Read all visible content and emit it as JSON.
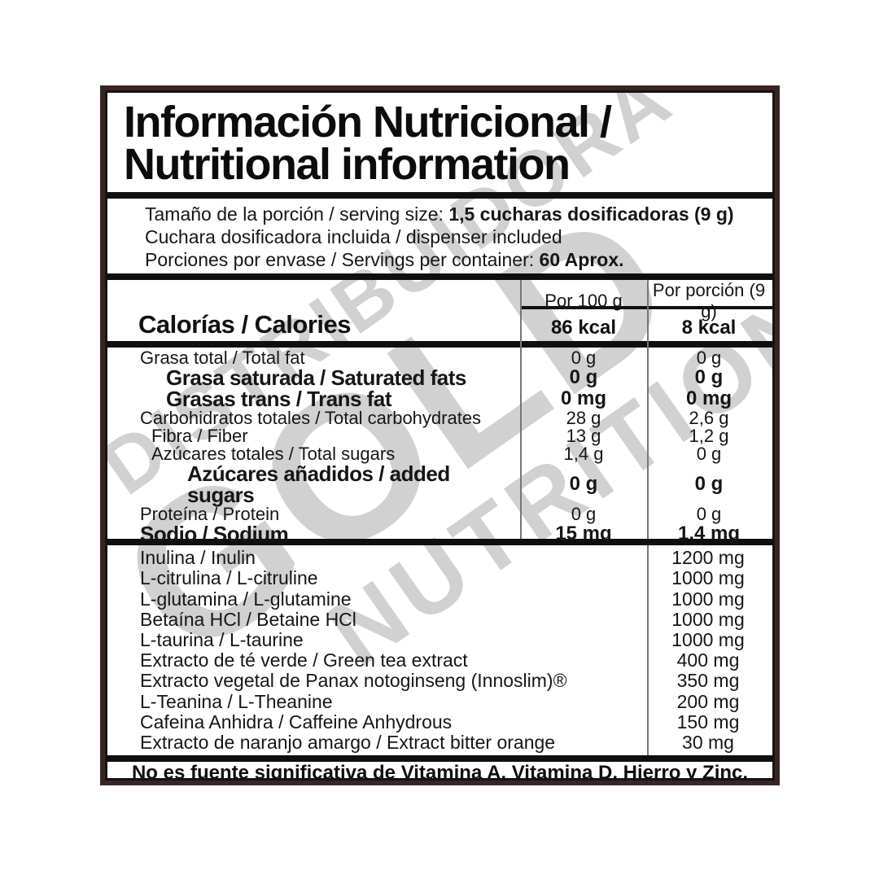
{
  "colors": {
    "outer_border": "#382521",
    "rule_black": "#0f0f0f",
    "column_divider_gray": "#777777",
    "watermark_gray": "#c9c9c9"
  },
  "watermark": {
    "lines": [
      "DISTRIBUIDORA",
      "GOLD",
      "NUTRITION"
    ]
  },
  "label": {
    "title": {
      "line1": "Información Nutricional /",
      "line2": "Nutritional information"
    },
    "serving": {
      "line1_regular": "Tamaño de la porción / serving size: ",
      "line1_bold": "1,5 cucharas dosificadoras (9 g)",
      "line2": "Cuchara dosificadora incluida / dispenser included",
      "line3_regular": "Porciones por envase / Servings per container: ",
      "line3_bold": "60 Aprox."
    },
    "table": {
      "col_headers": [
        "Por 100 g",
        "Por porción (9 g)"
      ],
      "calories": {
        "label": "Calorías / Calories",
        "per_100g": "86 kcal",
        "per_serving": "8 kcal"
      },
      "rows": [
        {
          "label": "Grasa total / Total fat",
          "per_100g": "0 g",
          "per_serving": "0 g",
          "bold": false,
          "indent": 0
        },
        {
          "label": "Grasa saturada / Saturated fats",
          "per_100g": "0 g",
          "per_serving": "0 g",
          "bold": true,
          "indent": 2
        },
        {
          "label": "Grasas trans / Trans fat",
          "per_100g": "0 mg",
          "per_serving": "0 mg",
          "bold": true,
          "indent": 2
        },
        {
          "label": "Carbohidratos totales / Total carbohydrates",
          "per_100g": "28 g",
          "per_serving": "2,6 g",
          "bold": false,
          "indent": 0
        },
        {
          "label": "Fibra / Fiber",
          "per_100g": "13 g",
          "per_serving": "1,2 g",
          "bold": false,
          "indent": 1
        },
        {
          "label": "Azúcares totales / Total sugars",
          "per_100g": "1,4 g",
          "per_serving": "0 g",
          "bold": false,
          "indent": 1
        },
        {
          "label": "Azúcares añadidos / added sugars",
          "per_100g": "0 g",
          "per_serving": "0 g",
          "bold": true,
          "indent": 3
        },
        {
          "label": "Proteína / Protein",
          "per_100g": "0 g",
          "per_serving": "0 g",
          "bold": false,
          "indent": 0
        },
        {
          "label": "Sodio / Sodium",
          "per_100g": "15 mg",
          "per_serving": "1,4 mg",
          "bold": true,
          "indent": 0
        }
      ]
    },
    "supplements": [
      {
        "name": "Inulina / Inulin",
        "amount": "1200 mg"
      },
      {
        "name": "L-citrulina / L-citruline",
        "amount": "1000 mg"
      },
      {
        "name": "L-glutamina / L-glutamine",
        "amount": "1000 mg"
      },
      {
        "name": "Betaína HCl / Betaine HCl",
        "amount": "1000 mg"
      },
      {
        "name": "L-taurina / L-taurine",
        "amount": "1000 mg"
      },
      {
        "name": "Extracto de té verde / Green tea extract",
        "amount": "400 mg"
      },
      {
        "name": "Extracto vegetal de Panax notoginseng (Innoslim)®",
        "amount": "350 mg"
      },
      {
        "name": "L-Teanina / L-Theanine",
        "amount": "200 mg"
      },
      {
        "name": "Cafeina Anhidra / Caffeine Anhydrous",
        "amount": "150 mg"
      },
      {
        "name": "Extracto de naranjo amargo / Extract bitter orange",
        "amount": "30 mg"
      }
    ],
    "footnote": "No es fuente significativa de Vitamina A, Vitamina D, Hierro y Zinc."
  }
}
